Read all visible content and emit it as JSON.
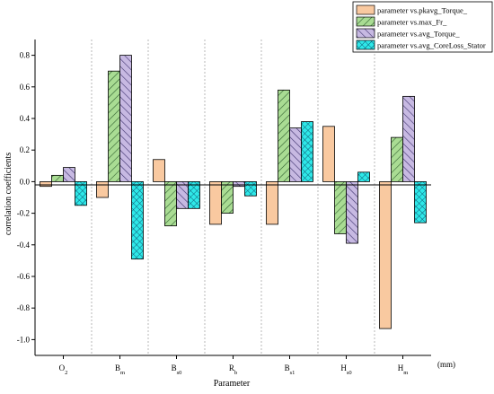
{
  "chart_data": {
    "type": "bar",
    "title": "",
    "xlabel": "Parameter",
    "ylabel": "correlation coefficients",
    "x_unit_note": "(mm)",
    "ylim": [
      -1.1,
      0.9
    ],
    "yticks": [
      0.8,
      0.6,
      0.4,
      0.2,
      0.0,
      -0.2,
      -0.4,
      -0.6,
      -0.8,
      -1.0
    ],
    "grid": "vertical dashed separators",
    "legend_position": "top-right",
    "categories": [
      {
        "base": "O",
        "sub": "2"
      },
      {
        "base": "B",
        "sub": "m"
      },
      {
        "base": "B",
        "sub": "s0"
      },
      {
        "base": "R",
        "sub": "b"
      },
      {
        "base": "B",
        "sub": "s1"
      },
      {
        "base": "H",
        "sub": "s0"
      },
      {
        "base": "H",
        "sub": "m"
      }
    ],
    "series": [
      {
        "name": "parameter vs.pkavg_Torque_",
        "color": "#f9c9a0",
        "pattern": "solid",
        "values": [
          -0.03,
          -0.1,
          0.14,
          -0.27,
          -0.27,
          0.35,
          -0.93
        ]
      },
      {
        "name": "parameter vs.max_Fr_",
        "color": "#a9dc93",
        "pattern": "hatch-diagonal",
        "values": [
          0.04,
          0.7,
          -0.28,
          -0.2,
          0.58,
          -0.33,
          0.28
        ]
      },
      {
        "name": "parameter vs.avg_Torque_",
        "color": "#c7b9e2",
        "pattern": "hatch-back-diagonal",
        "values": [
          0.09,
          0.8,
          -0.17,
          -0.03,
          0.34,
          -0.39,
          0.54
        ]
      },
      {
        "name": "parameter vs.avg_CoreLoss_Stator",
        "color": "#2ee8e8",
        "pattern": "crosshatch",
        "values": [
          -0.15,
          -0.49,
          -0.17,
          -0.09,
          0.38,
          0.06,
          -0.26
        ]
      }
    ]
  }
}
